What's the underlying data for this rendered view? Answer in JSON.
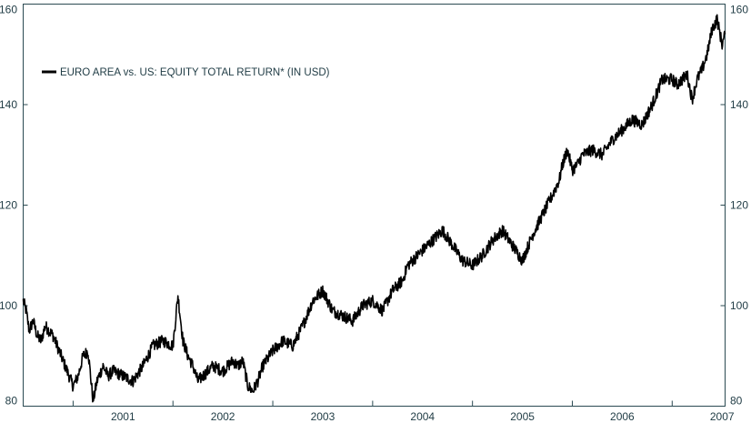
{
  "chart_data": {
    "type": "line",
    "title": "",
    "xlabel": "",
    "ylabel": "",
    "ylim": [
      80,
      160
    ],
    "xlim": [
      2000.5,
      2007.53
    ],
    "yticks": [
      80,
      100,
      120,
      140,
      160
    ],
    "xtick_labels": [
      "2001",
      "2002",
      "2003",
      "2004",
      "2005",
      "2006",
      "2007"
    ],
    "grid": false,
    "legend": {
      "placement": "top-left",
      "entries": [
        "EURO AREA vs. US: EQUITY TOTAL RETURN* (IN USD)"
      ]
    },
    "series": [
      {
        "name": "EURO AREA vs. US: EQUITY TOTAL RETURN* (IN USD)",
        "color": "#000000",
        "x": [
          2000.5,
          2000.53,
          2000.56,
          2000.6,
          2000.64,
          2000.68,
          2000.72,
          2000.76,
          2000.8,
          2000.84,
          2000.88,
          2000.92,
          2000.96,
          2001.0,
          2001.05,
          2001.1,
          2001.15,
          2001.2,
          2001.24,
          2001.28,
          2001.3,
          2001.35,
          2001.4,
          2001.5,
          2001.6,
          2001.7,
          2001.8,
          2001.9,
          2002.0,
          2002.05,
          2002.1,
          2002.15,
          2002.2,
          2002.25,
          2002.3,
          2002.35,
          2002.4,
          2002.5,
          2002.6,
          2002.65,
          2002.7,
          2002.75,
          2002.8,
          2002.85,
          2002.9,
          2003.0,
          2003.1,
          2003.2,
          2003.3,
          2003.4,
          2003.5,
          2003.55,
          2003.6,
          2003.7,
          2003.8,
          2003.9,
          2004.0,
          2004.1,
          2004.2,
          2004.3,
          2004.35,
          2004.4,
          2004.5,
          2004.6,
          2004.7,
          2004.8,
          2004.9,
          2005.0,
          2005.1,
          2005.2,
          2005.3,
          2005.4,
          2005.5,
          2005.6,
          2005.7,
          2005.8,
          2005.87,
          2005.9,
          2005.95,
          2006.0,
          2006.05,
          2006.1,
          2006.2,
          2006.3,
          2006.4,
          2006.5,
          2006.6,
          2006.7,
          2006.8,
          2006.9,
          2007.0,
          2007.05,
          2007.1,
          2007.15,
          2007.2,
          2007.25,
          2007.3,
          2007.35,
          2007.4,
          2007.45,
          2007.5,
          2007.53
        ],
        "values": [
          101,
          99,
          95,
          97,
          94,
          93,
          96,
          95,
          94,
          92,
          90,
          88,
          86,
          84,
          86,
          90,
          91,
          81,
          85,
          87,
          88,
          86,
          87,
          86,
          85,
          88,
          92,
          93,
          92,
          102,
          93,
          90,
          88,
          85,
          86,
          87,
          88,
          87,
          89,
          88,
          89,
          84,
          83,
          85,
          88,
          91,
          93,
          92,
          96,
          101,
          103,
          101,
          99,
          98,
          97,
          100,
          101,
          99,
          103,
          105,
          108,
          109,
          111,
          113,
          115,
          112,
          109,
          108,
          110,
          113,
          115,
          112,
          109,
          114,
          118,
          122,
          125,
          128,
          131,
          127,
          128,
          130,
          131,
          130,
          133,
          135,
          137,
          136,
          140,
          145,
          145,
          144,
          145,
          146,
          141,
          145,
          147,
          150,
          155,
          157,
          152,
          154
        ]
      }
    ]
  }
}
